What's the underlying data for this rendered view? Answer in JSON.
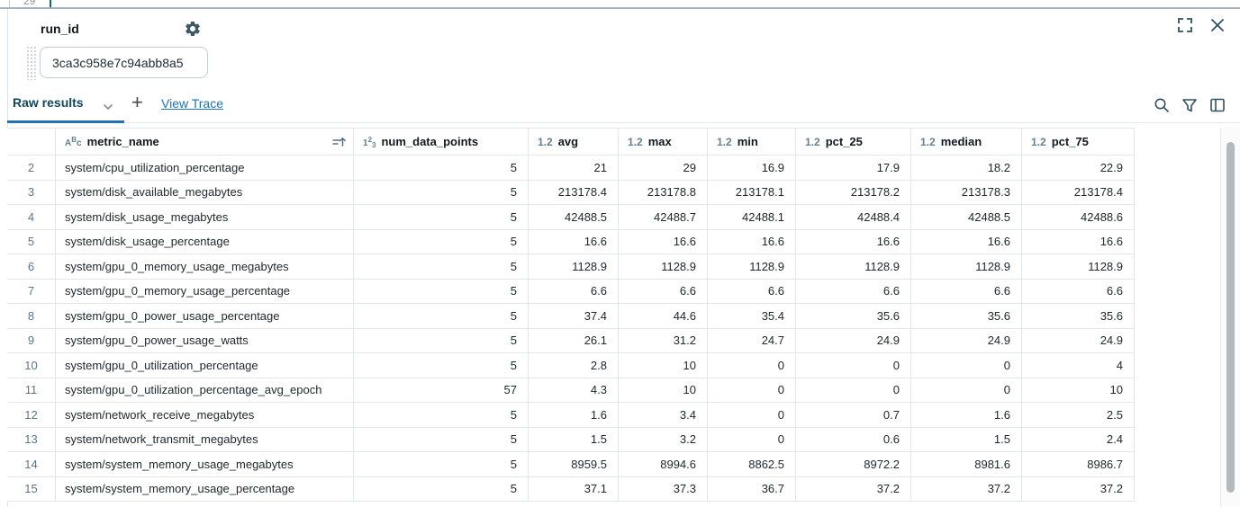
{
  "editor": {
    "line_number": "29"
  },
  "widget": {
    "label": "run_id",
    "value": "3ca3c958e7c94abb8a5"
  },
  "tabs": {
    "active_tab": "Raw results",
    "add_button": "+",
    "view_trace_link": "View Trace"
  },
  "colors": {
    "accent_blue": "#2272b4",
    "tab_text": "#12465c",
    "icon_slate": "#30505f",
    "type_icon": "#64818f",
    "row_number": "#5c7689",
    "border": "#e4e7e9"
  },
  "icons": [
    "gear-icon",
    "fullscreen-icon",
    "close-icon",
    "chevron-down-icon",
    "search-icon",
    "filter-icon",
    "columns-icon",
    "sort-ascending-icon",
    "drag-handle-icon"
  ],
  "table": {
    "type_icons": {
      "string": [
        "A",
        "B",
        "c"
      ],
      "int": [
        "1",
        "2",
        "3"
      ],
      "float": "1.2"
    },
    "columns": [
      {
        "type": "rownum",
        "label": ""
      },
      {
        "type": "string",
        "label": "metric_name",
        "sorted": true
      },
      {
        "type": "int",
        "label": "num_data_points"
      },
      {
        "type": "float",
        "label": "avg"
      },
      {
        "type": "float",
        "label": "max"
      },
      {
        "type": "float",
        "label": "min"
      },
      {
        "type": "float",
        "label": "pct_25"
      },
      {
        "type": "float",
        "label": "median"
      },
      {
        "type": "float",
        "label": "pct_75"
      }
    ],
    "rows": [
      [
        "2",
        "system/cpu_utilization_percentage",
        "5",
        "21",
        "29",
        "16.9",
        "17.9",
        "18.2",
        "22.9"
      ],
      [
        "3",
        "system/disk_available_megabytes",
        "5",
        "213178.4",
        "213178.8",
        "213178.1",
        "213178.2",
        "213178.3",
        "213178.4"
      ],
      [
        "4",
        "system/disk_usage_megabytes",
        "5",
        "42488.5",
        "42488.7",
        "42488.1",
        "42488.4",
        "42488.5",
        "42488.6"
      ],
      [
        "5",
        "system/disk_usage_percentage",
        "5",
        "16.6",
        "16.6",
        "16.6",
        "16.6",
        "16.6",
        "16.6"
      ],
      [
        "6",
        "system/gpu_0_memory_usage_megabytes",
        "5",
        "1128.9",
        "1128.9",
        "1128.9",
        "1128.9",
        "1128.9",
        "1128.9"
      ],
      [
        "7",
        "system/gpu_0_memory_usage_percentage",
        "5",
        "6.6",
        "6.6",
        "6.6",
        "6.6",
        "6.6",
        "6.6"
      ],
      [
        "8",
        "system/gpu_0_power_usage_percentage",
        "5",
        "37.4",
        "44.6",
        "35.4",
        "35.6",
        "35.6",
        "35.6"
      ],
      [
        "9",
        "system/gpu_0_power_usage_watts",
        "5",
        "26.1",
        "31.2",
        "24.7",
        "24.9",
        "24.9",
        "24.9"
      ],
      [
        "10",
        "system/gpu_0_utilization_percentage",
        "5",
        "2.8",
        "10",
        "0",
        "0",
        "0",
        "4"
      ],
      [
        "11",
        "system/gpu_0_utilization_percentage_avg_epoch",
        "57",
        "4.3",
        "10",
        "0",
        "0",
        "0",
        "10"
      ],
      [
        "12",
        "system/network_receive_megabytes",
        "5",
        "1.6",
        "3.4",
        "0",
        "0.7",
        "1.6",
        "2.5"
      ],
      [
        "13",
        "system/network_transmit_megabytes",
        "5",
        "1.5",
        "3.2",
        "0",
        "0.6",
        "1.5",
        "2.4"
      ],
      [
        "14",
        "system/system_memory_usage_megabytes",
        "5",
        "8959.5",
        "8994.6",
        "8862.5",
        "8972.2",
        "8981.6",
        "8986.7"
      ],
      [
        "15",
        "system/system_memory_usage_percentage",
        "5",
        "37.1",
        "37.3",
        "36.7",
        "37.2",
        "37.2",
        "37.2"
      ]
    ]
  }
}
